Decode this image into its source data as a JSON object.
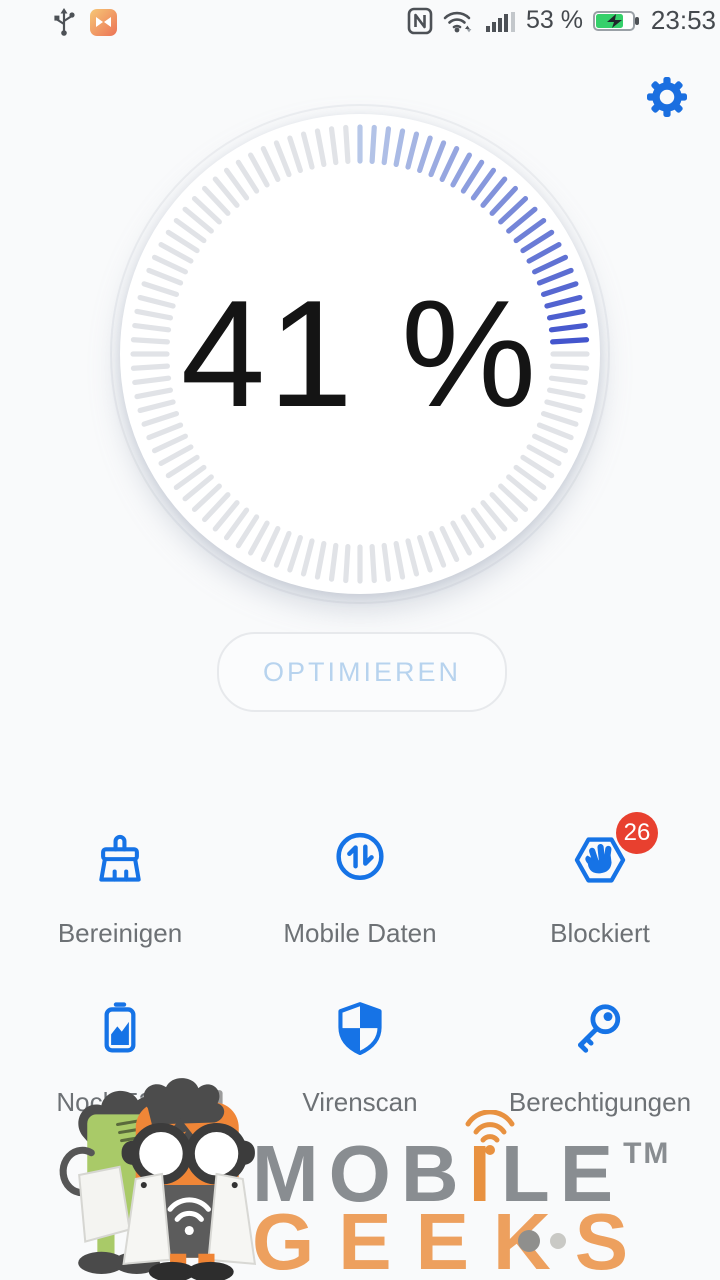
{
  "status_bar": {
    "time": "23:53",
    "battery_percent": "53 %",
    "nfc_label": "N",
    "icons": {
      "usb": "usb-icon",
      "app": "notification-app-icon",
      "nfc": "nfc-icon",
      "wifi": "wifi-icon",
      "signal": "signal-strength-icon",
      "battery": "battery-charging-icon"
    }
  },
  "header": {
    "settings_icon": "gear-icon"
  },
  "optimizer": {
    "percent_label": "41 %",
    "button_label": "OPTIMIEREN"
  },
  "features": [
    {
      "label": "Bereinigen",
      "icon": "broom-icon"
    },
    {
      "label": "Mobile Daten",
      "icon": "data-updown-icon"
    },
    {
      "label": "Blockiert",
      "icon": "blocked-hand-icon",
      "badge": "26"
    },
    {
      "label": "Noch 53 %",
      "icon": "battery-stats-icon"
    },
    {
      "label": "Virenscan",
      "icon": "shield-icon"
    },
    {
      "label": "Berechtigungen",
      "icon": "key-icon"
    }
  ],
  "watermark": {
    "mobile_pre": "MOB",
    "mobile_i": "I",
    "mobile_post": "LE",
    "tm": "TM",
    "geeks": "GEEKS"
  },
  "colors": {
    "accent_blue": "#1673e6",
    "progress_start": "#b8c8e8",
    "progress_end": "#4153cc",
    "badge_red": "#e8402f",
    "logo_gray": "#898d91",
    "logo_orange": "#eda05e",
    "battery_green": "#35d06a"
  }
}
